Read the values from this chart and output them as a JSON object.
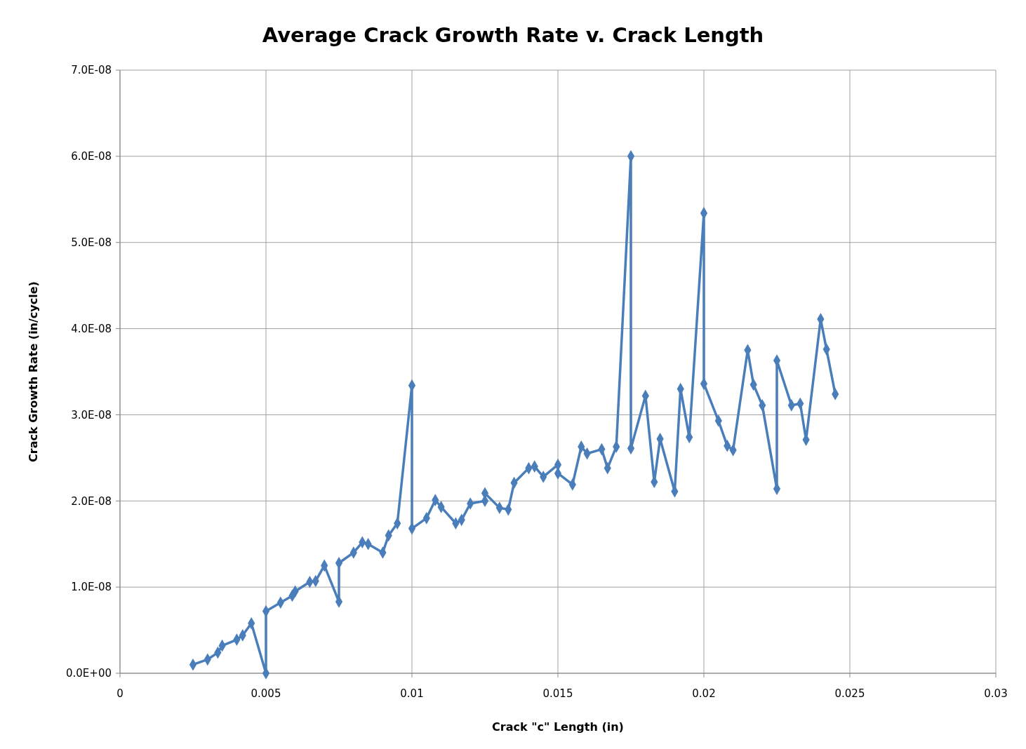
{
  "chart_data": {
    "type": "line",
    "title": "Average Crack Growth Rate v. Crack Length",
    "xlabel": "Crack \"c\" Length (in)",
    "ylabel": "Crack Growth Rate (in/cycle)",
    "xlim": [
      0,
      0.03
    ],
    "xticks": [
      0,
      0.005,
      0.01,
      0.015,
      0.02,
      0.025,
      0.03
    ],
    "ylim": [
      0,
      7e-08
    ],
    "yticks": [
      {
        "value": 0,
        "label": "0.0E+00"
      },
      {
        "value": 1e-08,
        "label": "1.0E-08"
      },
      {
        "value": 2e-08,
        "label": "2.0E-08"
      },
      {
        "value": 3e-08,
        "label": "3.0E-08"
      },
      {
        "value": 4e-08,
        "label": "4.0E-08"
      },
      {
        "value": 5e-08,
        "label": "5.0E-08"
      },
      {
        "value": 6e-08,
        "label": "6.0E-08"
      },
      {
        "value": 7e-08,
        "label": "7.0E-08"
      }
    ],
    "grid": true,
    "marker": "diamond",
    "line_style": "solid",
    "series": [
      {
        "color": "#4a7ebb",
        "x": [
          0.0025,
          0.003,
          0.00335,
          0.0035,
          0.004,
          0.0042,
          0.0045,
          0.005,
          0.005,
          0.0055,
          0.0059,
          0.006,
          0.0065,
          0.0067,
          0.007,
          0.0075,
          0.0075,
          0.008,
          0.0083,
          0.0085,
          0.009,
          0.0092,
          0.0095,
          0.01,
          0.01,
          0.0105,
          0.0108,
          0.011,
          0.0115,
          0.0117,
          0.012,
          0.0125,
          0.0125,
          0.013,
          0.0133,
          0.0135,
          0.014,
          0.0142,
          0.0145,
          0.015,
          0.015,
          0.0155,
          0.0158,
          0.016,
          0.0165,
          0.0167,
          0.017,
          0.0175,
          0.0175,
          0.018,
          0.0183,
          0.0185,
          0.019,
          0.0192,
          0.0195,
          0.02,
          0.02,
          0.0205,
          0.0208,
          0.021,
          0.0215,
          0.0217,
          0.022,
          0.0225,
          0.0225,
          0.023,
          0.0233,
          0.0235,
          0.024,
          0.0242,
          0.0245
        ],
        "values": [
          1e-09,
          1.6e-09,
          2.4e-09,
          3.2e-09,
          3.9e-09,
          4.4e-09,
          5.8e-09,
          0,
          7.2e-09,
          8.2e-09,
          9e-09,
          9.5e-09,
          1.06e-08,
          1.07e-08,
          1.25e-08,
          8.3e-09,
          1.28e-08,
          1.4e-08,
          1.52e-08,
          1.5e-08,
          1.4e-08,
          1.6e-08,
          1.74e-08,
          3.34e-08,
          1.68e-08,
          1.8e-08,
          2.01e-08,
          1.93e-08,
          1.74e-08,
          1.78e-08,
          1.97e-08,
          2e-08,
          2.09e-08,
          1.92e-08,
          1.9e-08,
          2.21e-08,
          2.38e-08,
          2.4e-08,
          2.28e-08,
          2.42e-08,
          2.32e-08,
          2.19e-08,
          2.63e-08,
          2.55e-08,
          2.6e-08,
          2.38e-08,
          2.63e-08,
          6e-08,
          2.61e-08,
          3.22e-08,
          2.22e-08,
          2.72e-08,
          2.11e-08,
          3.3e-08,
          2.74e-08,
          5.34e-08,
          3.36e-08,
          2.93e-08,
          2.64e-08,
          2.59e-08,
          3.75e-08,
          3.35e-08,
          3.11e-08,
          2.14e-08,
          3.63e-08,
          3.11e-08,
          3.13e-08,
          2.71e-08,
          4.11e-08,
          3.76e-08,
          3.24e-08
        ]
      }
    ]
  }
}
